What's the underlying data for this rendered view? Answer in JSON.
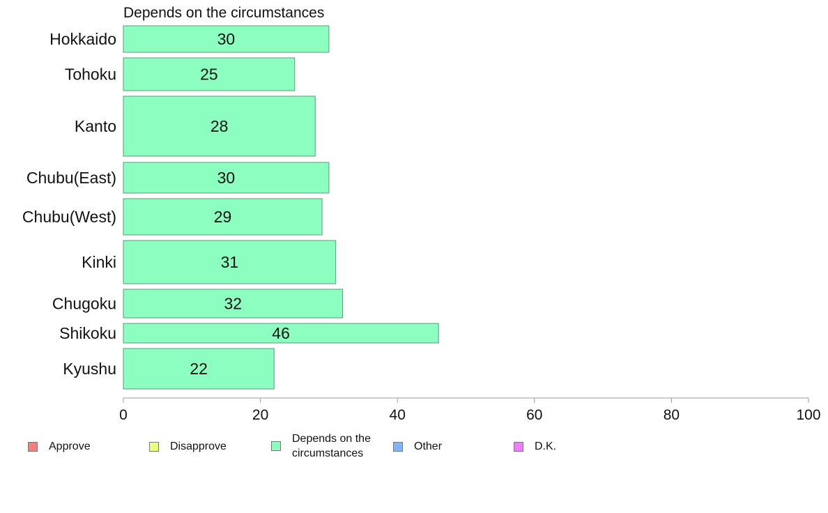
{
  "chart_data": {
    "type": "bar",
    "orientation": "horizontal",
    "title": "Depends on the circumstances",
    "categories": [
      "Hokkaido",
      "Tohoku",
      "Kanto",
      "Chubu(East)",
      "Chubu(West)",
      "Kinki",
      "Chugoku",
      "Shikoku",
      "Kyushu"
    ],
    "values": [
      30,
      25,
      28,
      30,
      29,
      31,
      32,
      46,
      22
    ],
    "xlim": [
      0,
      100
    ],
    "xticks": [
      0,
      20,
      40,
      60,
      80,
      100
    ],
    "grid": false,
    "bar_color": "#8cffc0",
    "bar_border_color": "#5a9a7a",
    "legend_position": "bottom",
    "legend": [
      {
        "label": "Approve",
        "color": "#f28080"
      },
      {
        "label": "Disapprove",
        "color": "#eaff80"
      },
      {
        "label": "Depends on the circumstances",
        "color": "#8cffc0"
      },
      {
        "label": "Other",
        "color": "#80b4ff"
      },
      {
        "label": "D.K.",
        "color": "#ee80ff"
      }
    ]
  }
}
